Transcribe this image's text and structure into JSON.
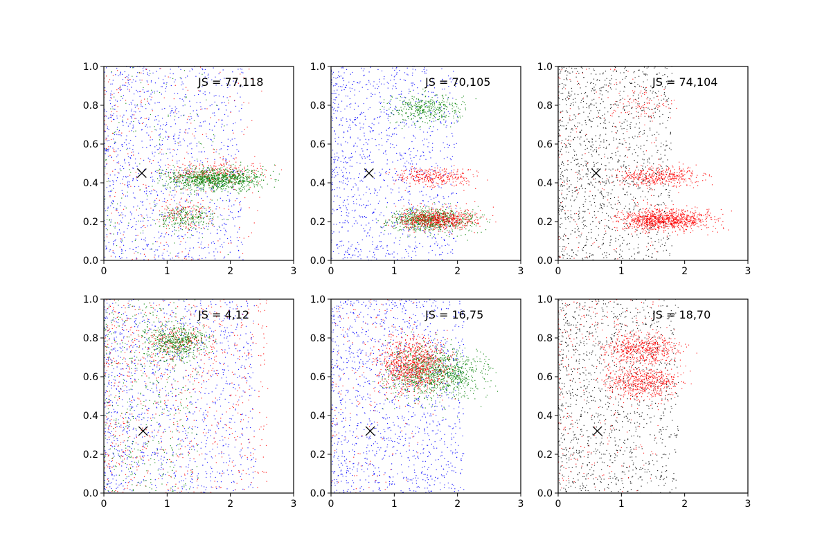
{
  "chart_data": [
    {
      "type": "scatter",
      "panel": "top-left",
      "annotation": "JS = 77,118",
      "xlim": [
        0,
        3
      ],
      "ylim": [
        0,
        1
      ],
      "xticks": [
        "0",
        "1",
        "2",
        "3"
      ],
      "yticks": [
        "0.0",
        "0.2",
        "0.4",
        "0.6",
        "0.8",
        "1.0"
      ],
      "marker": {
        "x": 0.6,
        "y": 0.45,
        "symbol": "x"
      },
      "series": [
        {
          "color": "#0000ff",
          "clusters": [
            {
              "x": [
                0,
                2.2
              ],
              "y": [
                0,
                1
              ],
              "n": 1100,
              "kind": "uniform"
            }
          ]
        },
        {
          "color": "#ff0000",
          "clusters": [
            {
              "x": [
                0,
                2.5
              ],
              "y": [
                0,
                1
              ],
              "n": 260,
              "kind": "uniform"
            },
            {
              "x": [
                0.5,
                3.0
              ],
              "y": [
                0.45,
                0.0
              ],
              "n": 280,
              "kind": "band",
              "sy": 0.035
            },
            {
              "x": [
                0.6,
                2.0
              ],
              "y": [
                0.24,
                0.0
              ],
              "n": 120,
              "kind": "band",
              "sy": 0.035
            }
          ]
        },
        {
          "color": "#008000",
          "clusters": [
            {
              "x": [
                0.5,
                3.0
              ],
              "y": [
                0.42,
                0.0
              ],
              "n": 1000,
              "kind": "band",
              "sy": 0.03
            },
            {
              "x": [
                0.6,
                2.0
              ],
              "y": [
                0.22,
                0.0
              ],
              "n": 220,
              "kind": "band",
              "sy": 0.03
            },
            {
              "x": [
                0,
                2
              ],
              "y": [
                0,
                1
              ],
              "n": 150,
              "kind": "uniform"
            }
          ]
        }
      ]
    },
    {
      "type": "scatter",
      "panel": "top-middle",
      "annotation": "JS = 70,105",
      "xlim": [
        0,
        3
      ],
      "ylim": [
        0,
        1
      ],
      "xticks": [
        "0",
        "1",
        "2",
        "3"
      ],
      "yticks": [
        "0.0",
        "0.2",
        "0.4",
        "0.6",
        "0.8",
        "1.0"
      ],
      "marker": {
        "x": 0.6,
        "y": 0.45,
        "symbol": "x"
      },
      "series": [
        {
          "color": "#0000ff",
          "clusters": [
            {
              "x": [
                0,
                2.0
              ],
              "y": [
                0,
                1
              ],
              "n": 1100,
              "kind": "uniform"
            }
          ]
        },
        {
          "color": "#008000",
          "clusters": [
            {
              "x": [
                0.5,
                2.5
              ],
              "y": [
                0.78,
                0.0
              ],
              "n": 380,
              "kind": "band",
              "sy": 0.035
            },
            {
              "x": [
                0.5,
                2.7
              ],
              "y": [
                0.21,
                0.0
              ],
              "n": 750,
              "kind": "band",
              "sy": 0.03
            }
          ]
        },
        {
          "color": "#ff0000",
          "clusters": [
            {
              "x": [
                0.6,
                2.7
              ],
              "y": [
                0.43,
                0.0
              ],
              "n": 320,
              "kind": "band",
              "sy": 0.025
            },
            {
              "x": [
                0.6,
                2.8
              ],
              "y": [
                0.21,
                0.0
              ],
              "n": 650,
              "kind": "band",
              "sy": 0.025
            }
          ]
        }
      ]
    },
    {
      "type": "scatter",
      "panel": "top-right",
      "annotation": "JS = 74,104",
      "xlim": [
        0,
        3
      ],
      "ylim": [
        0,
        1
      ],
      "xticks": [
        "0",
        "1",
        "2",
        "3"
      ],
      "yticks": [
        "0.0",
        "0.2",
        "0.4",
        "0.6",
        "0.8",
        "1.0"
      ],
      "marker": {
        "x": 0.6,
        "y": 0.45,
        "symbol": "x"
      },
      "series": [
        {
          "color": "#000000",
          "clusters": [
            {
              "x": [
                0,
                1.8
              ],
              "y": [
                0,
                1
              ],
              "n": 1300,
              "kind": "uniform"
            }
          ]
        },
        {
          "color": "#ff0000",
          "clusters": [
            {
              "x": [
                0.5,
                2.7
              ],
              "y": [
                0.43,
                0.0
              ],
              "n": 420,
              "kind": "band",
              "sy": 0.025
            },
            {
              "x": [
                0.5,
                2.9
              ],
              "y": [
                0.21,
                0.0
              ],
              "n": 1000,
              "kind": "band",
              "sy": 0.028
            },
            {
              "x": [
                0.4,
                2.2
              ],
              "y": [
                0.8,
                0.0
              ],
              "n": 90,
              "kind": "band",
              "sy": 0.05
            },
            {
              "x": [
                0,
                1.6
              ],
              "y": [
                0,
                1
              ],
              "n": 150,
              "kind": "uniform"
            }
          ]
        }
      ]
    },
    {
      "type": "scatter",
      "panel": "bottom-left",
      "annotation": "JS = 4,12",
      "xlim": [
        0,
        3
      ],
      "ylim": [
        0,
        1
      ],
      "xticks": [
        "0",
        "1",
        "2",
        "3"
      ],
      "yticks": [
        "0.0",
        "0.2",
        "0.4",
        "0.6",
        "0.8",
        "1.0"
      ],
      "marker": {
        "x": 0.62,
        "y": 0.32,
        "symbol": "x"
      },
      "series": [
        {
          "color": "#0000ff",
          "clusters": [
            {
              "x": [
                0,
                2.4
              ],
              "y": [
                0,
                1
              ],
              "n": 1200,
              "kind": "uniform"
            }
          ]
        },
        {
          "color": "#ff0000",
          "clusters": [
            {
              "x": [
                0,
                2.6
              ],
              "y": [
                0,
                1
              ],
              "n": 700,
              "kind": "uniform"
            },
            {
              "x": [
                0.3,
                2.0
              ],
              "y": [
                0.78,
                0.0
              ],
              "n": 200,
              "kind": "band",
              "sy": 0.04
            }
          ]
        },
        {
          "color": "#008000",
          "clusters": [
            {
              "x": [
                0.3,
                2.0
              ],
              "y": [
                0.78,
                0.0
              ],
              "n": 500,
              "kind": "band",
              "sy": 0.04
            },
            {
              "x": [
                0,
                1.5
              ],
              "y": [
                0,
                1
              ],
              "n": 450,
              "kind": "uniform"
            }
          ]
        }
      ]
    },
    {
      "type": "scatter",
      "panel": "bottom-middle",
      "annotation": "JS = 16,75",
      "xlim": [
        0,
        3
      ],
      "ylim": [
        0,
        1
      ],
      "xticks": [
        "0",
        "1",
        "2",
        "3"
      ],
      "yticks": [
        "0.0",
        "0.2",
        "0.4",
        "0.6",
        "0.8",
        "1.0"
      ],
      "marker": {
        "x": 0.62,
        "y": 0.32,
        "symbol": "x"
      },
      "series": [
        {
          "color": "#0000ff",
          "clusters": [
            {
              "x": [
                0,
                2.1
              ],
              "y": [
                0,
                1
              ],
              "n": 1300,
              "kind": "uniform"
            }
          ]
        },
        {
          "color": "#008000",
          "clusters": [
            {
              "x": [
                0.4,
                2.9
              ],
              "y": [
                0.62,
                0.0
              ],
              "n": 1100,
              "kind": "band",
              "sy": 0.065
            }
          ]
        },
        {
          "color": "#ff0000",
          "clusters": [
            {
              "x": [
                0.4,
                2.2
              ],
              "y": [
                0.66,
                0.0
              ],
              "n": 900,
              "kind": "band",
              "sy": 0.07
            },
            {
              "x": [
                0,
                1.4
              ],
              "y": [
                0,
                1
              ],
              "n": 150,
              "kind": "uniform"
            }
          ]
        }
      ]
    },
    {
      "type": "scatter",
      "panel": "bottom-right",
      "annotation": "JS = 18,70",
      "xlim": [
        0,
        3
      ],
      "ylim": [
        0,
        1
      ],
      "xticks": [
        "0",
        "1",
        "2",
        "3"
      ],
      "yticks": [
        "0.0",
        "0.2",
        "0.4",
        "0.6",
        "0.8",
        "1.0"
      ],
      "marker": {
        "x": 0.62,
        "y": 0.32,
        "symbol": "x"
      },
      "series": [
        {
          "color": "#000000",
          "clusters": [
            {
              "x": [
                0,
                1.9
              ],
              "y": [
                0,
                1
              ],
              "n": 1200,
              "kind": "uniform"
            }
          ]
        },
        {
          "color": "#ff0000",
          "clusters": [
            {
              "x": [
                0.4,
                2.3
              ],
              "y": [
                0.74,
                0.0
              ],
              "n": 550,
              "kind": "band",
              "sy": 0.04
            },
            {
              "x": [
                0.4,
                2.3
              ],
              "y": [
                0.57,
                0.0
              ],
              "n": 550,
              "kind": "band",
              "sy": 0.04
            },
            {
              "x": [
                0,
                1.6
              ],
              "y": [
                0,
                1
              ],
              "n": 250,
              "kind": "uniform"
            }
          ]
        }
      ]
    }
  ]
}
